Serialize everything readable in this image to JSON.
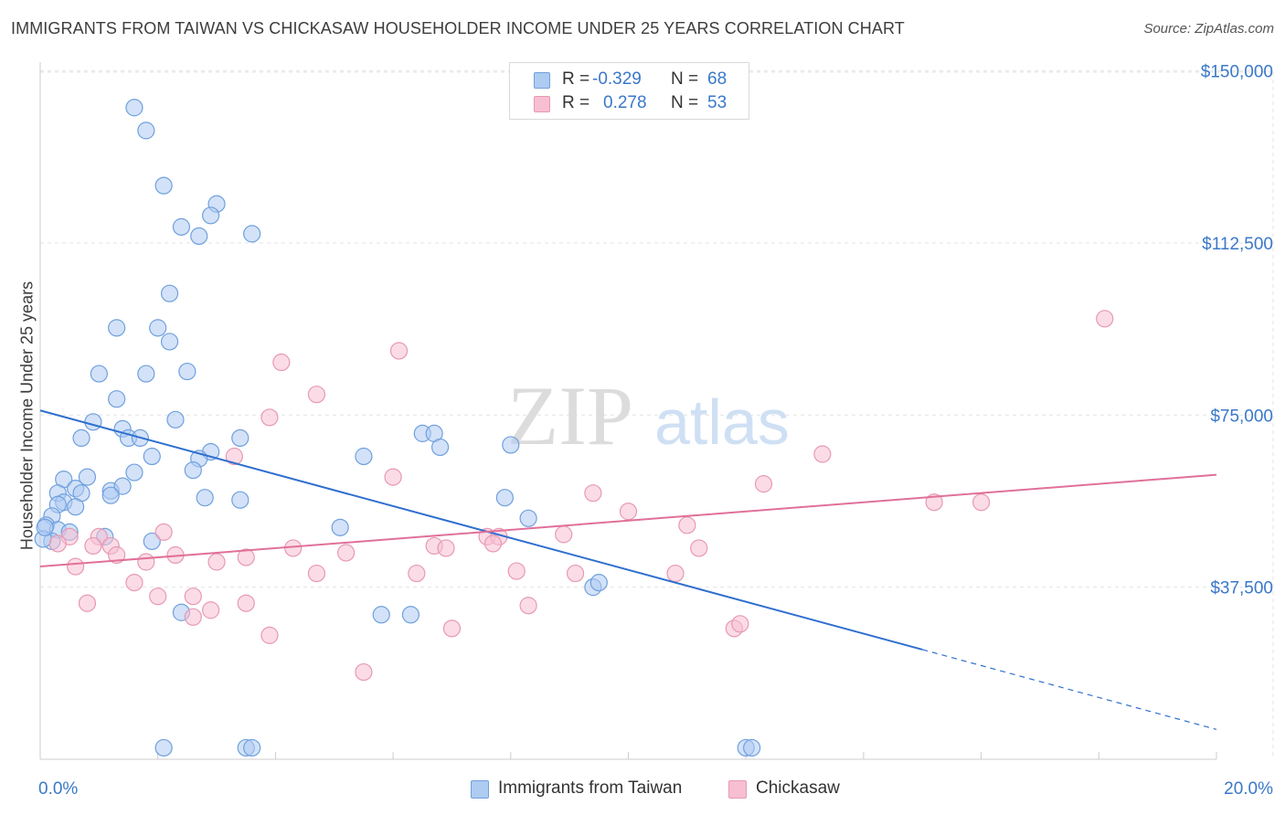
{
  "title": "IMMIGRANTS FROM TAIWAN VS CHICKASAW HOUSEHOLDER INCOME UNDER 25 YEARS CORRELATION CHART",
  "source": "Source: ZipAtlas.com",
  "watermark": {
    "zip": "ZIP",
    "atlas": "atlas"
  },
  "legend_top": {
    "rows": [
      {
        "r_label": "R =",
        "r_value": "-0.329",
        "n_label": "N =",
        "n_value": "68"
      },
      {
        "r_label": "R =",
        "r_value": "0.278",
        "n_label": "N =",
        "n_value": "53"
      }
    ]
  },
  "legend_bottom": {
    "items": [
      {
        "label": "Immigrants from Taiwan"
      },
      {
        "label": "Chickasaw"
      }
    ]
  },
  "colors": {
    "taiwan_fill": "#aecbf2",
    "taiwan_stroke": "#6fa0dd",
    "taiwan_line": "#2f6fcf",
    "chickasaw_fill": "#f7bfd1",
    "chickasaw_stroke": "#e899b2",
    "chickasaw_line": "#e0709a",
    "value_text": "#3a78c9",
    "grid": "#e3e3e3"
  },
  "chart_data": {
    "type": "scatter",
    "title": "IMMIGRANTS FROM TAIWAN VS CHICKASAW HOUSEHOLDER INCOME UNDER 25 YEARS CORRELATION CHART",
    "xlabel": "",
    "ylabel": "Householder Income Under 25 years",
    "xlim": [
      0,
      20
    ],
    "ylim": [
      0,
      153500
    ],
    "x_tick_labels": [
      "0.0%",
      "20.0%"
    ],
    "y_ticks": [
      37500,
      75000,
      112500,
      150000
    ],
    "y_tick_labels": [
      "$37,500",
      "$75,000",
      "$112,500",
      "$150,000"
    ],
    "grid": true,
    "series": [
      {
        "name": "Immigrants from Taiwan",
        "R": -0.329,
        "N": 68,
        "trend": {
          "x0": 0,
          "y0": 76000,
          "x1": 15,
          "y1": 23900,
          "dash_to_x": 20,
          "dash_to_y": 6500
        },
        "points": [
          [
            1.6,
            142000
          ],
          [
            1.8,
            137000
          ],
          [
            2.1,
            125000
          ],
          [
            3.0,
            121000
          ],
          [
            2.9,
            118500
          ],
          [
            2.4,
            116000
          ],
          [
            2.7,
            114000
          ],
          [
            3.6,
            114500
          ],
          [
            2.2,
            101500
          ],
          [
            1.3,
            94000
          ],
          [
            2.0,
            94000
          ],
          [
            2.2,
            91000
          ],
          [
            1.0,
            84000
          ],
          [
            1.8,
            84000
          ],
          [
            2.5,
            84500
          ],
          [
            1.3,
            78500
          ],
          [
            0.9,
            73500
          ],
          [
            2.3,
            74000
          ],
          [
            1.4,
            72000
          ],
          [
            0.7,
            70000
          ],
          [
            1.5,
            70000
          ],
          [
            1.7,
            70000
          ],
          [
            3.4,
            70000
          ],
          [
            2.9,
            67000
          ],
          [
            5.5,
            66000
          ],
          [
            2.7,
            65500
          ],
          [
            1.9,
            66000
          ],
          [
            6.5,
            71000
          ],
          [
            6.7,
            71000
          ],
          [
            6.8,
            68000
          ],
          [
            8.0,
            68500
          ],
          [
            2.6,
            63000
          ],
          [
            1.6,
            62500
          ],
          [
            0.8,
            61500
          ],
          [
            0.4,
            61000
          ],
          [
            0.6,
            59000
          ],
          [
            1.2,
            58500
          ],
          [
            1.4,
            59500
          ],
          [
            0.3,
            58000
          ],
          [
            0.7,
            58000
          ],
          [
            1.2,
            57500
          ],
          [
            0.4,
            56000
          ],
          [
            0.3,
            55500
          ],
          [
            0.6,
            55000
          ],
          [
            2.8,
            57000
          ],
          [
            3.4,
            56500
          ],
          [
            7.9,
            57000
          ],
          [
            0.2,
            53000
          ],
          [
            0.1,
            51000
          ],
          [
            0.3,
            50000
          ],
          [
            0.5,
            49500
          ],
          [
            0.2,
            47500
          ],
          [
            8.3,
            52500
          ],
          [
            5.1,
            50500
          ],
          [
            1.1,
            48500
          ],
          [
            1.9,
            47500
          ],
          [
            9.4,
            37500
          ],
          [
            9.5,
            38500
          ],
          [
            2.4,
            32000
          ],
          [
            5.8,
            31500
          ],
          [
            6.3,
            31500
          ],
          [
            2.1,
            2500
          ],
          [
            3.5,
            2500
          ],
          [
            3.6,
            2500
          ],
          [
            12.0,
            2500
          ],
          [
            12.1,
            2500
          ],
          [
            0.05,
            48000
          ],
          [
            0.08,
            50500
          ]
        ]
      },
      {
        "name": "Chickasaw",
        "R": 0.278,
        "N": 53,
        "trend": {
          "x0": 0,
          "y0": 42000,
          "x1": 20,
          "y1": 62000
        },
        "points": [
          [
            18.1,
            96000
          ],
          [
            6.1,
            89000
          ],
          [
            4.1,
            86500
          ],
          [
            4.7,
            79500
          ],
          [
            3.9,
            74500
          ],
          [
            13.3,
            66500
          ],
          [
            3.3,
            66000
          ],
          [
            6.0,
            61500
          ],
          [
            12.3,
            60000
          ],
          [
            15.2,
            56000
          ],
          [
            16.0,
            56000
          ],
          [
            9.4,
            58000
          ],
          [
            10.0,
            54000
          ],
          [
            11.0,
            51000
          ],
          [
            0.5,
            48500
          ],
          [
            1.0,
            48500
          ],
          [
            2.1,
            49500
          ],
          [
            7.6,
            48500
          ],
          [
            7.8,
            48500
          ],
          [
            8.9,
            49000
          ],
          [
            0.9,
            46500
          ],
          [
            0.3,
            47000
          ],
          [
            1.2,
            46500
          ],
          [
            4.3,
            46000
          ],
          [
            5.2,
            45000
          ],
          [
            6.7,
            46500
          ],
          [
            6.9,
            46000
          ],
          [
            7.7,
            47000
          ],
          [
            11.2,
            46000
          ],
          [
            1.3,
            44500
          ],
          [
            2.3,
            44500
          ],
          [
            3.5,
            44000
          ],
          [
            1.8,
            43000
          ],
          [
            3.0,
            43000
          ],
          [
            0.6,
            42000
          ],
          [
            4.7,
            40500
          ],
          [
            6.4,
            40500
          ],
          [
            8.1,
            41000
          ],
          [
            9.1,
            40500
          ],
          [
            10.8,
            40500
          ],
          [
            1.6,
            38500
          ],
          [
            2.0,
            35500
          ],
          [
            2.6,
            35500
          ],
          [
            0.8,
            34000
          ],
          [
            3.5,
            34000
          ],
          [
            8.3,
            33500
          ],
          [
            2.9,
            32500
          ],
          [
            2.6,
            31000
          ],
          [
            3.9,
            27000
          ],
          [
            7.0,
            28500
          ],
          [
            11.8,
            28500
          ],
          [
            11.9,
            29500
          ],
          [
            5.5,
            19000
          ]
        ]
      }
    ]
  }
}
